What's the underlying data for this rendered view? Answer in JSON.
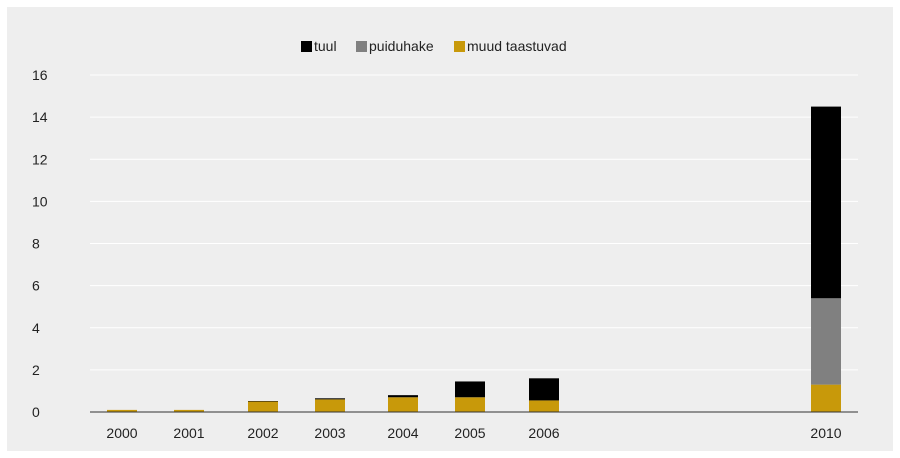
{
  "chart_data": {
    "type": "bar",
    "stacked": true,
    "categories": [
      "2000",
      "2001",
      "2002",
      "2003",
      "2004",
      "2005",
      "2006",
      "2010"
    ],
    "series": [
      {
        "name": "muud taastuvad",
        "color": "#c8990a",
        "values": [
          0.1,
          0.1,
          0.5,
          0.6,
          0.7,
          0.7,
          0.55,
          1.3
        ]
      },
      {
        "name": "puiduhake",
        "color": "#808080",
        "values": [
          0,
          0,
          0,
          0,
          0,
          0,
          0,
          4.1
        ]
      },
      {
        "name": "tuul",
        "color": "#000000",
        "values": [
          0,
          0,
          0.02,
          0.05,
          0.1,
          0.75,
          1.05,
          9.1
        ]
      }
    ],
    "legend_order": [
      "tuul",
      "puiduhake",
      "muud taastuvad"
    ],
    "title": "",
    "xlabel": "",
    "ylabel": "",
    "ylim": [
      0,
      16
    ],
    "yticks": [
      0,
      2,
      4,
      6,
      8,
      10,
      12,
      14,
      16
    ],
    "grid": true,
    "legend_position": "top-center",
    "background": "#eeeeee"
  }
}
